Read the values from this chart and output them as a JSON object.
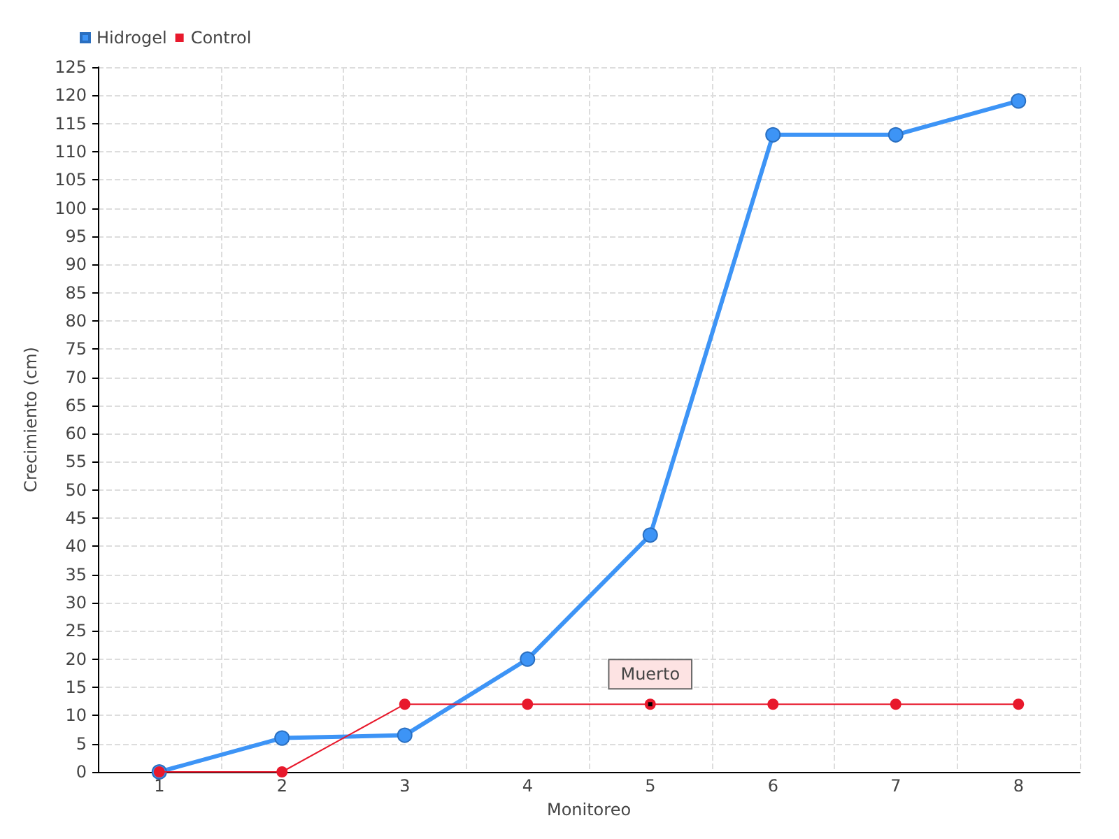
{
  "chart_data": {
    "type": "line",
    "xlabel": "Monitoreo",
    "ylabel": "Crecimiento (cm)",
    "categories": [
      "1",
      "2",
      "3",
      "4",
      "5",
      "6",
      "7",
      "8"
    ],
    "series": [
      {
        "name": "Hidrogel",
        "color": "#3d94f6",
        "values": [
          0,
          6,
          6.5,
          20,
          42,
          113,
          113,
          119
        ]
      },
      {
        "name": "Control",
        "color": "#e8192c",
        "values": [
          0,
          0,
          12,
          12,
          12,
          12,
          12,
          12
        ]
      }
    ],
    "ylim": [
      0,
      125
    ],
    "yticks": [
      0,
      5,
      10,
      15,
      20,
      25,
      30,
      35,
      40,
      45,
      50,
      55,
      60,
      65,
      70,
      75,
      80,
      85,
      90,
      95,
      100,
      105,
      110,
      115,
      120,
      125
    ],
    "annotations": [
      {
        "text": "Muerto",
        "x": "5",
        "y": 12
      }
    ],
    "grid": true,
    "legend": "top left",
    "marker": "circle",
    "line_style": "solid"
  }
}
